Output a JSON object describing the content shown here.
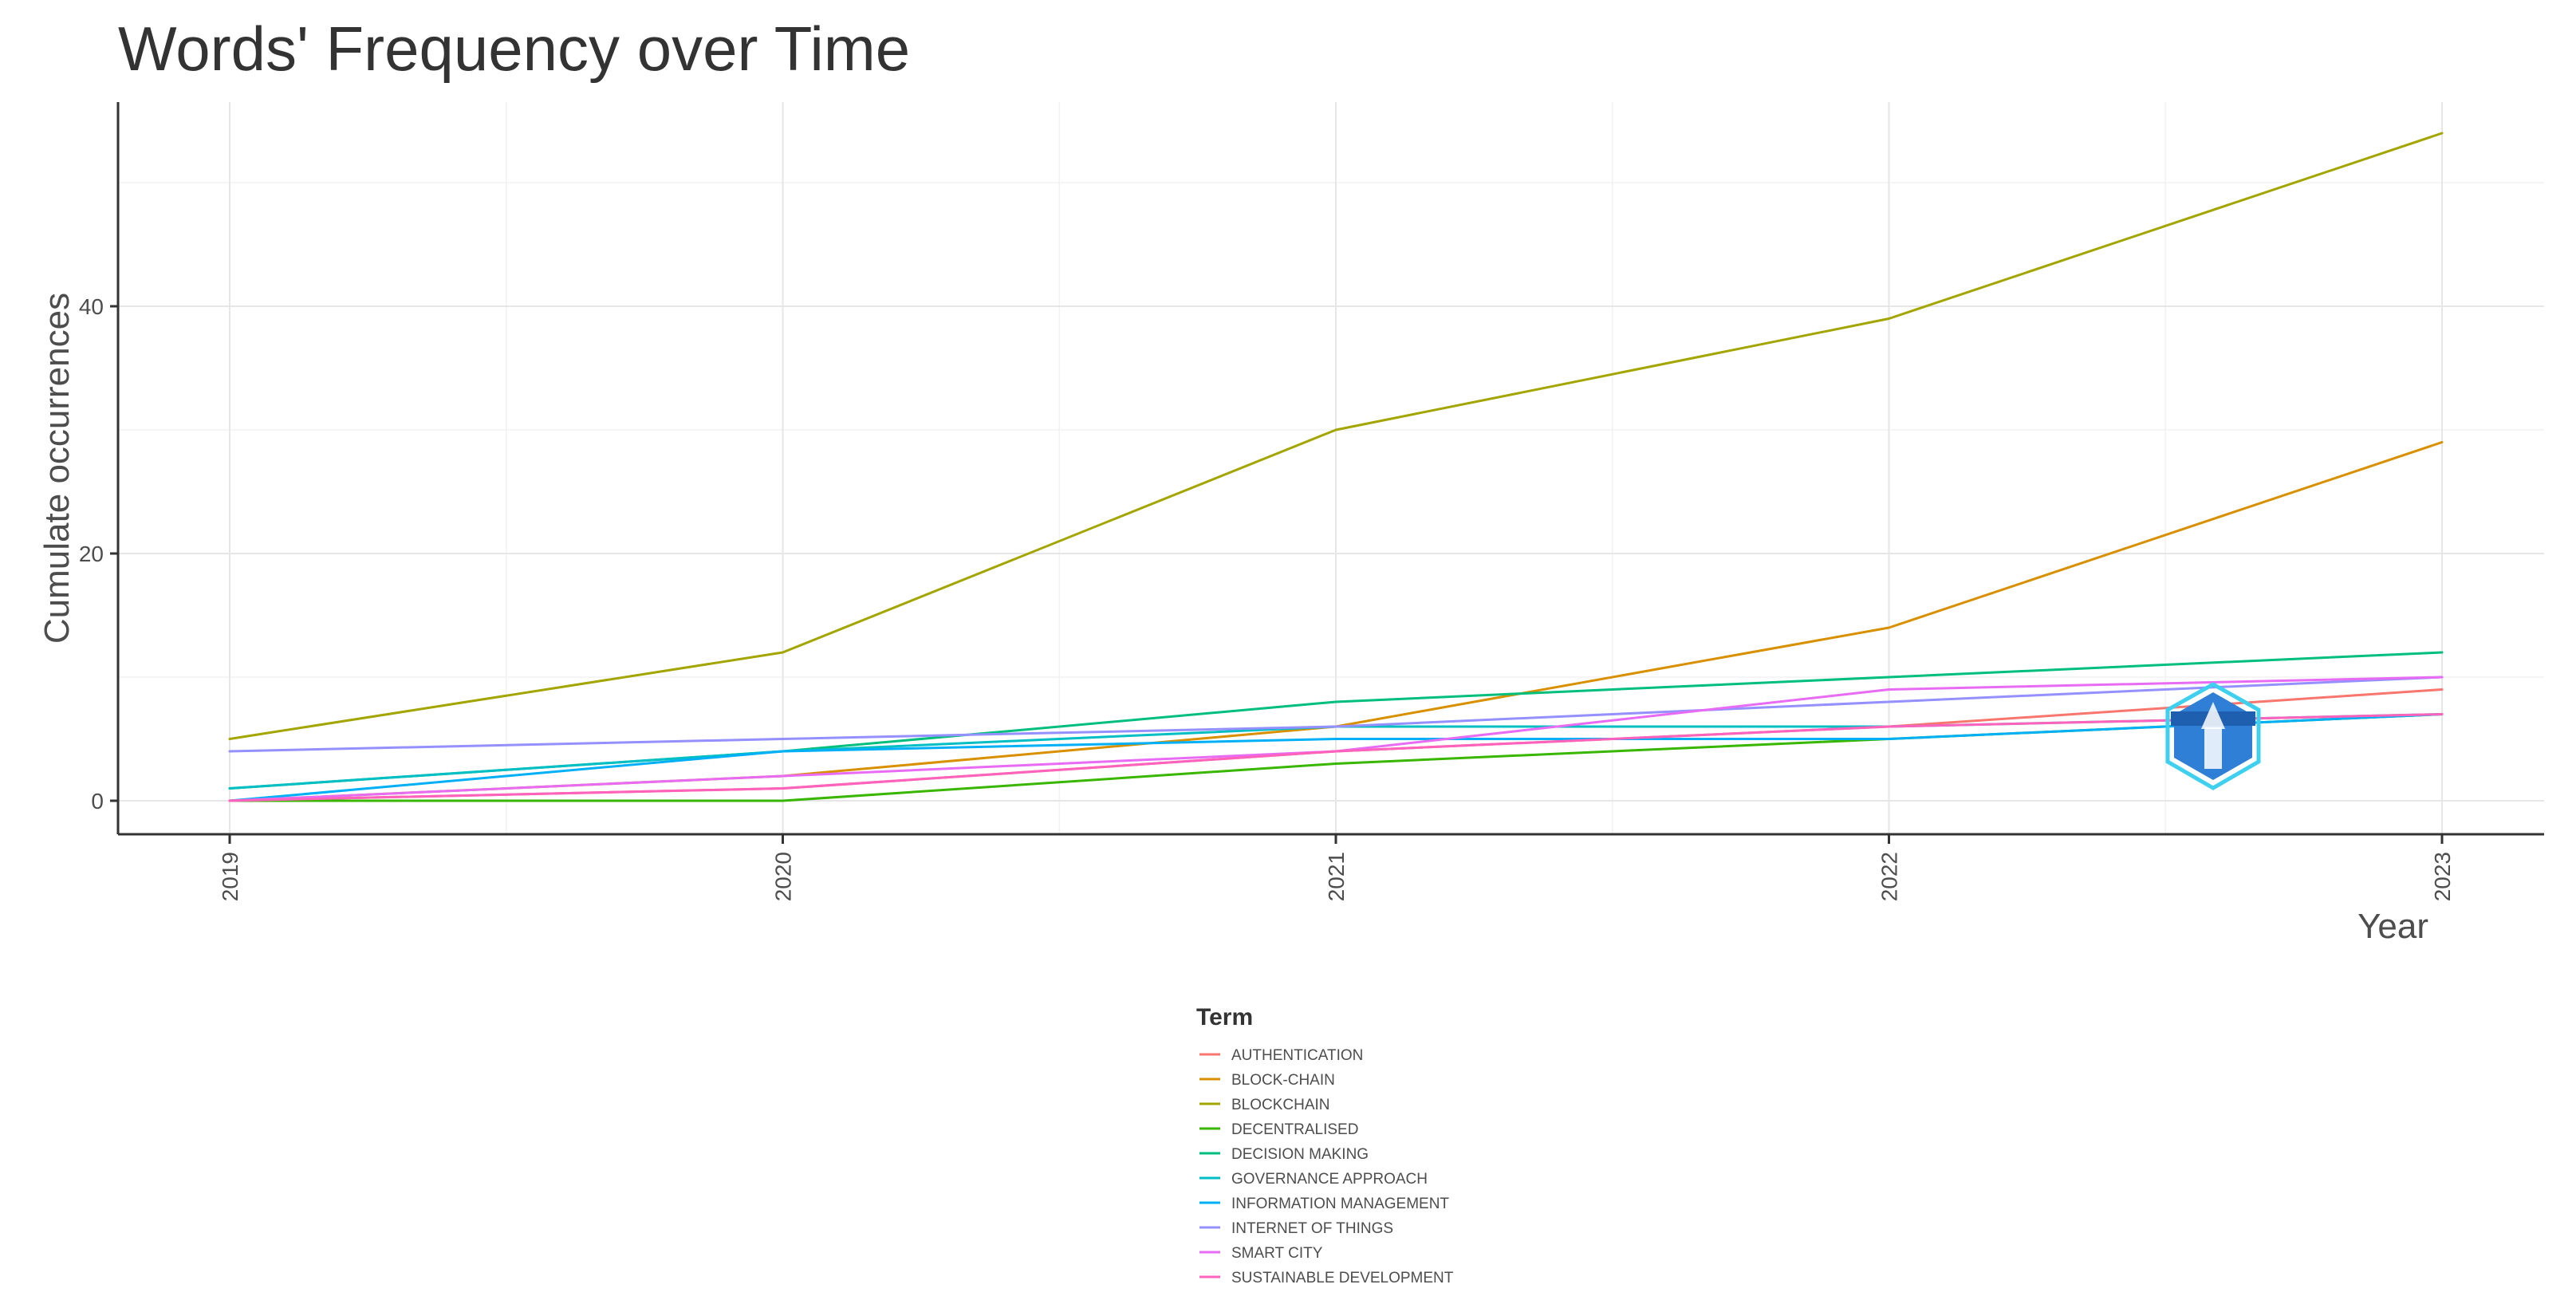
{
  "chart_data": {
    "type": "line",
    "title": "Words' Frequency over Time",
    "xlabel": "Year",
    "ylabel": "Cumulate occurrences",
    "x": [
      "2019",
      "2020",
      "2021",
      "2022",
      "2023"
    ],
    "ylim": [
      -3,
      56
    ],
    "yticks": [
      0,
      20,
      40
    ],
    "grid": true,
    "legend_title": "Term",
    "legend_position": "bottom",
    "series": [
      {
        "name": "AUTHENTICATION",
        "color": "#F8766D",
        "values": [
          0,
          1,
          4,
          6,
          9
        ]
      },
      {
        "name": "BLOCK-CHAIN",
        "color": "#D89000",
        "values": [
          0,
          2,
          6,
          14,
          29
        ]
      },
      {
        "name": "BLOCKCHAIN",
        "color": "#A3A500",
        "values": [
          5,
          12,
          30,
          39,
          54
        ]
      },
      {
        "name": "DECENTRALISED",
        "color": "#39B600",
        "values": [
          0,
          0,
          3,
          5,
          7
        ]
      },
      {
        "name": "DECISION MAKING",
        "color": "#00BF7D",
        "values": [
          1,
          4,
          8,
          10,
          12
        ]
      },
      {
        "name": "GOVERNANCE APPROACH",
        "color": "#00BFC4",
        "values": [
          1,
          4,
          6,
          6,
          7
        ]
      },
      {
        "name": "INFORMATION MANAGEMENT",
        "color": "#00B0F6",
        "values": [
          0,
          4,
          5,
          5,
          7
        ]
      },
      {
        "name": "INTERNET OF THINGS",
        "color": "#9590FF",
        "values": [
          4,
          5,
          6,
          8,
          10
        ]
      },
      {
        "name": "SMART CITY",
        "color": "#E76BF3",
        "values": [
          0,
          2,
          4,
          9,
          10
        ]
      },
      {
        "name": "SUSTAINABLE DEVELOPMENT",
        "color": "#FF62BC",
        "values": [
          0,
          1,
          4,
          6,
          7
        ]
      }
    ]
  },
  "logo": {
    "name": "bibliometrix-logo",
    "color": "#2f7fd6",
    "accent": "#3fd0f0"
  }
}
